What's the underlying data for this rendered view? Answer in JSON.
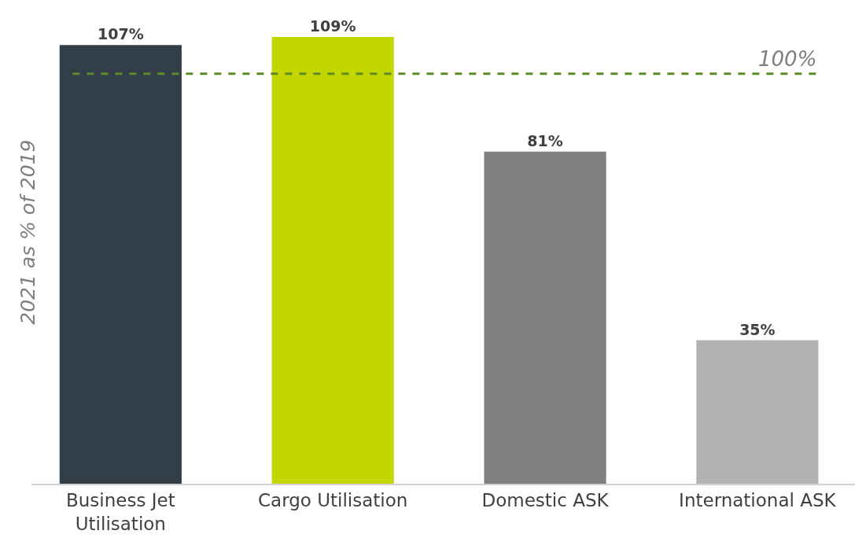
{
  "chart_data": {
    "type": "bar",
    "ylabel": "2021 as % of 2019",
    "categories": [
      "Business Jet Utilisation",
      "Cargo Utilisation",
      "Domestic ASK",
      "International ASK"
    ],
    "values": [
      107,
      109,
      81,
      35
    ],
    "colors": [
      "#333f48",
      "#c4d600",
      "#808080",
      "#b3b3b3"
    ],
    "value_labels": [
      "107%",
      "109%",
      "81%",
      "35%"
    ],
    "ylim": [
      0,
      118
    ],
    "tick_labels": "x",
    "grid": false,
    "ref_lines": [
      {
        "axis": "y",
        "value": 100,
        "label": "100%",
        "color": "#5b8c2a",
        "line_style": "dashed"
      }
    ]
  }
}
